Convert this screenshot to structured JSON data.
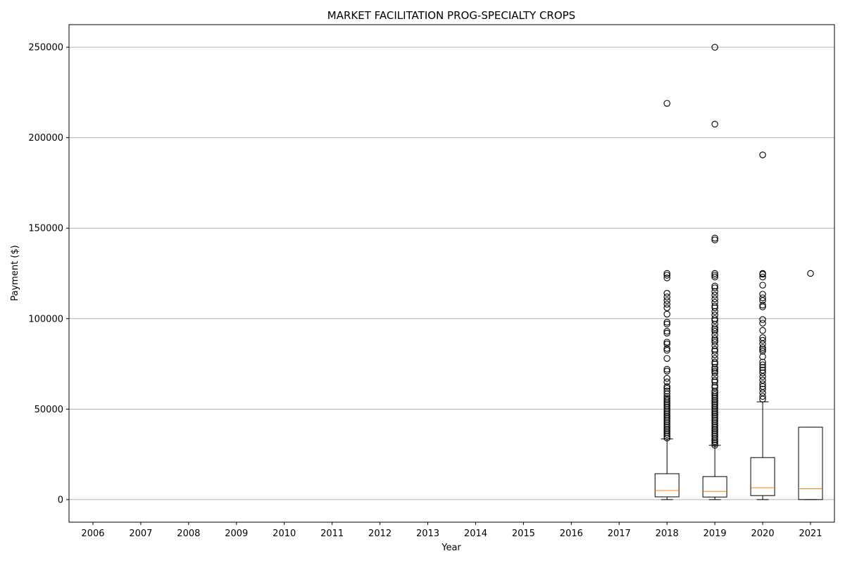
{
  "chart_data": {
    "type": "box",
    "title": "MARKET FACILITATION PROG-SPECIALTY CROPS",
    "xlabel": "Year",
    "ylabel": "Payment ($)",
    "ylim": [
      -12500,
      262500
    ],
    "yticks": [
      0,
      50000,
      100000,
      150000,
      200000,
      250000
    ],
    "ytick_labels": [
      "0",
      "50000",
      "100000",
      "150000",
      "200000",
      "250000"
    ],
    "grid": "horizontal",
    "categories": [
      "2006",
      "2007",
      "2008",
      "2009",
      "2010",
      "2011",
      "2012",
      "2013",
      "2014",
      "2015",
      "2016",
      "2017",
      "2018",
      "2019",
      "2020",
      "2021"
    ],
    "boxes": [
      {
        "category": "2018",
        "whisker_low": 0,
        "q1": 1500,
        "median": 5000,
        "q3": 14300,
        "whisker_high": 33500,
        "outliers": [
          34000,
          35000,
          36000,
          37000,
          38000,
          39000,
          40000,
          41000,
          42000,
          43000,
          44000,
          45000,
          46000,
          47000,
          48000,
          49000,
          50000,
          51000,
          52000,
          53000,
          54000,
          55000,
          56000,
          57000,
          58500,
          60000,
          61500,
          62500,
          65000,
          67000,
          71000,
          72000,
          78000,
          82500,
          83500,
          86000,
          87000,
          92000,
          93000,
          97000,
          98000,
          102500,
          106000,
          108000,
          110000,
          112000,
          114000,
          122500,
          124000,
          125000,
          219000
        ]
      },
      {
        "category": "2019",
        "whisker_low": 0,
        "q1": 1400,
        "median": 4500,
        "q3": 12700,
        "whisker_high": 30000,
        "outliers": [
          30000,
          31000,
          32000,
          33000,
          34000,
          35000,
          36000,
          37000,
          38000,
          39000,
          40000,
          41000,
          42000,
          43000,
          44000,
          45000,
          46000,
          47000,
          48000,
          49000,
          50000,
          51000,
          52000,
          53000,
          54000,
          55000,
          56000,
          57000,
          58000,
          59000,
          60000,
          62000,
          63000,
          65000,
          66000,
          68000,
          70000,
          71000,
          72000,
          73000,
          75000,
          76000,
          78000,
          80000,
          82000,
          83000,
          85000,
          87000,
          88000,
          89000,
          91000,
          93000,
          94000,
          95000,
          97000,
          99000,
          100000,
          102000,
          104000,
          106000,
          107000,
          109000,
          111000,
          113000,
          115000,
          117000,
          118000,
          123000,
          124000,
          125000,
          143500,
          144500,
          207500,
          250000
        ]
      },
      {
        "category": "2020",
        "whisker_low": 0,
        "q1": 2200,
        "median": 6500,
        "q3": 23200,
        "whisker_high": 54000,
        "outliers": [
          55500,
          57000,
          59000,
          61000,
          62500,
          64000,
          66000,
          68000,
          70000,
          71500,
          73000,
          74500,
          76000,
          79000,
          82000,
          83000,
          84000,
          86000,
          88000,
          89500,
          93500,
          97500,
          99500,
          106500,
          107500,
          110000,
          111500,
          113500,
          118500,
          123000,
          124500,
          125000,
          190500
        ]
      },
      {
        "category": "2021",
        "whisker_low": 0,
        "q1": 0,
        "median": 6000,
        "q3": 40000,
        "whisker_high": 40000,
        "outliers": [
          125000
        ]
      }
    ],
    "colors": {
      "box": "#000000",
      "median": "#ff7f0e",
      "grid": "#b0b0b0",
      "outlier": "#000000"
    }
  }
}
